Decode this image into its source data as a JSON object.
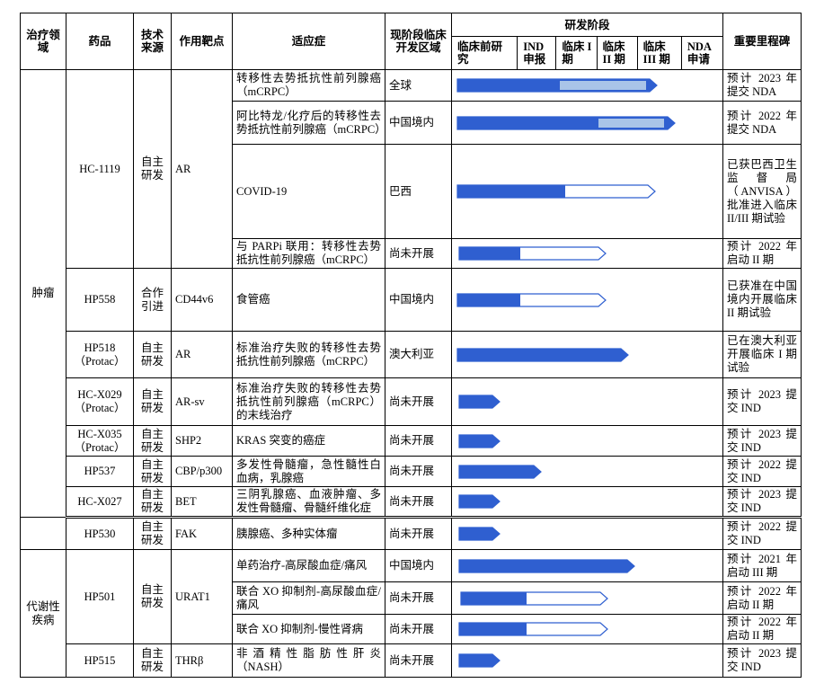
{
  "header": {
    "area": "治疗领域",
    "drug": "药品",
    "source": "技术来源",
    "target": "作用靶点",
    "indication": "适应症",
    "region": "现阶段临床开发区域",
    "stage": "研发阶段",
    "stages": [
      "临床前研究",
      "IND 申报",
      "临床 I 期",
      "临床 II 期",
      "临床 III 期",
      "NDA 申请"
    ],
    "milestone": "重要里程碑"
  },
  "rows": [
    {
      "area": "肿瘤",
      "drug": "HC-1119",
      "source": "自主研发",
      "target": "AR",
      "indication": "转移性去势抵抗性前列腺癌（mCRPC）",
      "region": "全球",
      "milestone": "预计 2023 年提交 NDA"
    },
    {
      "indication": "阿比特龙/化疗后的转移性去势抵抗性前列腺癌（mCRPC）",
      "region": "中国境内",
      "milestone": "预计 2022 年提交 NDA"
    },
    {
      "indication": "COVID-19",
      "region": "巴西",
      "milestone": "已获巴西卫生监督局（ANVISA）批准进入临床 II/III 期试验"
    },
    {
      "indication": "与 PARPi 联用：转移性去势抵抗性前列腺癌（mCRPC）",
      "region": "尚未开展",
      "milestone": "预计 2022 年启动 II 期"
    },
    {
      "drug": "HP558",
      "source": "合作引进",
      "target": "CD44v6",
      "indication": "食管癌",
      "region": "中国境内",
      "milestone": "已获准在中国境内开展临床 II 期试验"
    },
    {
      "drug": "HP518",
      "drug_note": "（Protac）",
      "source": "自主研发",
      "target": "AR",
      "indication": "标准治疗失败的转移性去势抵抗性前列腺癌（mCRPC）",
      "region": "澳大利亚",
      "milestone": "已在澳大利亚开展临床 I 期试验"
    },
    {
      "drug": "HC-X029",
      "drug_note": "（Protac）",
      "source": "自主研发",
      "target": "AR-sv",
      "indication": "标准治疗失败的转移性去势抵抗性前列腺癌（mCRPC）的末线治疗",
      "region": "尚未开展",
      "milestone": "预计 2023 提交 IND"
    },
    {
      "drug": "HC-X035",
      "drug_note": "（Protac）",
      "source": "自主研发",
      "target": "SHP2",
      "indication": "KRAS 突变的癌症",
      "region": "尚未开展",
      "milestone": "预计 2023 提交 IND"
    },
    {
      "drug": "HP537",
      "source": "自主研发",
      "target": "CBP/p300",
      "indication": "多发性骨髓瘤，急性髓性白血病，乳腺癌",
      "region": "尚未开展",
      "milestone": "预计 2022 提交 IND"
    },
    {
      "drug": "HC-X027",
      "source": "自主研发",
      "target": "BET",
      "indication": "三阴乳腺癌、血液肿瘤、多发性骨髓瘤、骨髓纤维化症",
      "region": "尚未开展",
      "milestone": "预计 2023 提交 IND"
    },
    {
      "drug": "HP530",
      "source": "自主研发",
      "target": "FAK",
      "indication": "胰腺癌、多种实体瘤",
      "region": "尚未开展",
      "milestone": "预计 2022 提交 IND"
    },
    {
      "area": "代谢性疾病",
      "drug": "HP501",
      "source": "自主研发",
      "target": "URAT1",
      "indication": "单药治疗-高尿酸血症/痛风",
      "region": "中国境内",
      "milestone": "预计 2021 年启动 III 期"
    },
    {
      "indication": "联合 XO 抑制剂-高尿酸血症/痛风",
      "region": "尚未开展",
      "milestone": "预计 2022 年启动 II 期"
    },
    {
      "indication": "联合 XO 抑制剂-慢性肾病",
      "region": "尚未开展",
      "milestone": "预计 2022 年启动 II 期"
    },
    {
      "drug": "HP515",
      "source": "自主研发",
      "target": "THRβ",
      "indication": "非酒精性脂肪性肝炎（NASH）",
      "region": "尚未开展",
      "milestone": "预计 2023 提交 IND"
    }
  ]
}
